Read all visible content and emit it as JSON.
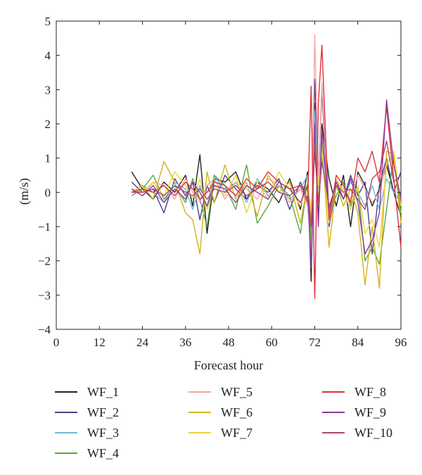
{
  "chart_data": {
    "type": "line",
    "title": "",
    "xlabel": "Forecast hour",
    "ylabel": "(m/s)",
    "xlim": [
      0,
      96
    ],
    "ylim": [
      -4,
      5
    ],
    "xticks": [
      0,
      12,
      24,
      36,
      48,
      60,
      72,
      84,
      96
    ],
    "yticks": [
      -4,
      -3,
      -2,
      -1,
      0,
      1,
      2,
      3,
      4,
      5
    ],
    "xtick_labels": [
      "0",
      "12",
      "24",
      "36",
      "48",
      "60",
      "72",
      "84",
      "96"
    ],
    "ytick_labels": [
      "−4",
      "−3",
      "−2",
      "−1",
      "0",
      "1",
      "2",
      "3",
      "4",
      "5"
    ],
    "grid": false,
    "legend_position": "below",
    "legend_columns": 3,
    "series": [
      {
        "name": "WF_1",
        "color": "#222222",
        "x": [
          21,
          24,
          27,
          30,
          33,
          36,
          38,
          40,
          42,
          44,
          47,
          50,
          53,
          56,
          59,
          62,
          65,
          68,
          70,
          71,
          72,
          73,
          74,
          76,
          78,
          80,
          82,
          84,
          86,
          88,
          90,
          92,
          94,
          96
        ],
        "y": [
          0.6,
          0.1,
          -0.2,
          0.3,
          0.0,
          0.5,
          -0.4,
          1.1,
          -1.2,
          0.4,
          0.3,
          0.6,
          -0.2,
          0.3,
          0.1,
          -0.3,
          0.4,
          -0.5,
          0.6,
          -2.6,
          2.6,
          -0.8,
          2.0,
          0.4,
          -0.4,
          0.5,
          -1.0,
          0.6,
          0.2,
          -0.4,
          0.1,
          0.8,
          0.0,
          -0.7
        ]
      },
      {
        "name": "WF_2",
        "color": "#4b3f8f",
        "x": [
          21,
          24,
          27,
          30,
          33,
          36,
          38,
          40,
          42,
          44,
          47,
          50,
          53,
          56,
          59,
          62,
          65,
          68,
          70,
          71,
          72,
          73,
          74,
          76,
          78,
          80,
          82,
          84,
          86,
          88,
          90,
          92,
          94,
          96
        ],
        "y": [
          0.3,
          0.0,
          0.1,
          -0.6,
          0.4,
          -0.1,
          0.3,
          -0.8,
          0.2,
          -0.3,
          0.5,
          0.1,
          -0.2,
          0.2,
          0.0,
          0.4,
          -0.5,
          0.3,
          -0.2,
          -1.2,
          3.3,
          0.4,
          3.0,
          -1.0,
          0.2,
          -0.2,
          0.5,
          -0.1,
          0.3,
          -1.8,
          0.2,
          1.0,
          0.0,
          0.6
        ]
      },
      {
        "name": "WF_3",
        "color": "#6bbbd8",
        "x": [
          21,
          24,
          27,
          30,
          33,
          36,
          38,
          40,
          42,
          44,
          47,
          50,
          53,
          56,
          59,
          62,
          65,
          68,
          70,
          71,
          72,
          73,
          74,
          76,
          78,
          80,
          82,
          84,
          86,
          88,
          90,
          92,
          94,
          96
        ],
        "y": [
          0.0,
          0.2,
          0.0,
          -0.3,
          0.3,
          0.1,
          -0.5,
          0.2,
          -0.4,
          0.5,
          0.0,
          0.3,
          -0.3,
          0.4,
          -0.1,
          0.2,
          -0.2,
          0.1,
          0.5,
          -1.2,
          2.4,
          0.1,
          1.5,
          -0.6,
          0.4,
          -0.2,
          0.3,
          0.0,
          -0.4,
          0.2,
          -0.5,
          0.4,
          0.0,
          -0.3
        ]
      },
      {
        "name": "WF_4",
        "color": "#5aa83a",
        "x": [
          21,
          24,
          27,
          30,
          33,
          36,
          38,
          40,
          42,
          44,
          47,
          50,
          53,
          56,
          59,
          62,
          65,
          68,
          70,
          71,
          72,
          73,
          74,
          76,
          78,
          80,
          82,
          84,
          86,
          88,
          90,
          92,
          94,
          96
        ],
        "y": [
          -0.1,
          0.1,
          0.5,
          -0.2,
          0.2,
          -0.3,
          0.4,
          -0.2,
          -1.0,
          0.5,
          0.2,
          -0.5,
          0.8,
          -0.9,
          -0.4,
          0.2,
          -0.1,
          -1.2,
          0.3,
          -1.5,
          1.4,
          -0.4,
          1.0,
          -0.6,
          -0.1,
          0.3,
          -0.4,
          0.2,
          -2.0,
          -1.6,
          -2.1,
          -0.5,
          1.1,
          -0.6
        ]
      },
      {
        "name": "WF_5",
        "color": "#f4a6a4",
        "x": [
          21,
          24,
          27,
          30,
          33,
          36,
          38,
          40,
          42,
          44,
          47,
          50,
          53,
          56,
          59,
          62,
          65,
          68,
          70,
          71,
          72,
          73,
          74,
          76,
          78,
          80,
          82,
          84,
          86,
          88,
          90,
          92,
          94,
          96
        ],
        "y": [
          0.1,
          -0.1,
          0.3,
          0.2,
          -0.2,
          0.4,
          0.0,
          -0.3,
          0.2,
          0.4,
          -0.2,
          0.3,
          0.1,
          -0.2,
          0.4,
          0.2,
          -0.3,
          0.1,
          -0.4,
          -1.8,
          4.6,
          0.3,
          3.2,
          -0.8,
          0.3,
          0.1,
          -0.2,
          0.5,
          0.1,
          -0.3,
          0.0,
          0.9,
          1.0,
          -0.2
        ]
      },
      {
        "name": "WF_6",
        "color": "#d4b21e",
        "x": [
          21,
          24,
          27,
          30,
          33,
          36,
          38,
          40,
          42,
          44,
          47,
          50,
          53,
          56,
          59,
          62,
          65,
          68,
          70,
          71,
          72,
          73,
          74,
          76,
          78,
          80,
          82,
          84,
          86,
          88,
          90,
          92,
          94,
          96
        ],
        "y": [
          0.0,
          0.2,
          -0.2,
          0.9,
          0.3,
          -0.6,
          -0.8,
          -1.8,
          0.6,
          -0.3,
          0.8,
          -0.2,
          0.3,
          -0.7,
          0.5,
          0.0,
          0.3,
          -0.9,
          0.2,
          -0.8,
          1.6,
          -0.3,
          1.4,
          -1.6,
          0.2,
          -0.4,
          0.1,
          -0.6,
          -2.7,
          -1.0,
          -2.8,
          1.2,
          1.1,
          -0.9
        ]
      },
      {
        "name": "WF_7",
        "color": "#f0d23a",
        "x": [
          21,
          24,
          27,
          30,
          33,
          36,
          38,
          40,
          42,
          44,
          47,
          50,
          53,
          56,
          59,
          62,
          65,
          68,
          70,
          71,
          72,
          73,
          74,
          76,
          78,
          80,
          82,
          84,
          86,
          88,
          90,
          92,
          94,
          96
        ],
        "y": [
          0.1,
          0.0,
          0.3,
          -0.1,
          0.6,
          0.2,
          -0.2,
          0.4,
          -0.5,
          0.2,
          -0.1,
          0.5,
          -0.6,
          0.3,
          -0.2,
          0.6,
          0.1,
          -0.4,
          0.3,
          -0.5,
          1.7,
          0.2,
          1.2,
          -0.9,
          0.4,
          0.0,
          -0.5,
          0.2,
          -1.2,
          -0.8,
          -1.6,
          0.8,
          1.2,
          -0.4
        ]
      },
      {
        "name": "WF_8",
        "color": "#e0303a",
        "x": [
          21,
          24,
          27,
          30,
          33,
          36,
          38,
          40,
          42,
          44,
          47,
          50,
          53,
          56,
          59,
          62,
          65,
          68,
          70,
          71,
          72,
          73,
          74,
          76,
          78,
          80,
          82,
          84,
          86,
          88,
          90,
          92,
          94,
          96
        ],
        "y": [
          0.0,
          0.1,
          0.0,
          0.2,
          -0.1,
          0.3,
          0.1,
          -0.2,
          0.0,
          0.3,
          0.2,
          -0.1,
          0.4,
          0.1,
          0.6,
          0.3,
          0.1,
          0.2,
          -0.3,
          3.1,
          -3.1,
          2.6,
          4.3,
          -0.8,
          0.5,
          0.2,
          -0.3,
          1.0,
          0.6,
          1.2,
          0.3,
          2.5,
          0.4,
          -1.6
        ]
      },
      {
        "name": "WF_9",
        "color": "#8e3aa0",
        "x": [
          21,
          24,
          27,
          30,
          33,
          36,
          38,
          40,
          42,
          44,
          47,
          50,
          53,
          56,
          59,
          62,
          65,
          68,
          70,
          71,
          72,
          73,
          74,
          76,
          78,
          80,
          82,
          84,
          86,
          88,
          90,
          92,
          94,
          96
        ],
        "y": [
          0.1,
          -0.1,
          0.2,
          -0.3,
          0.1,
          -0.2,
          0.3,
          0.0,
          -0.4,
          0.2,
          0.1,
          -0.3,
          0.2,
          0.0,
          -0.2,
          0.3,
          0.1,
          -0.3,
          0.2,
          -2.2,
          2.0,
          -1.0,
          1.8,
          -0.5,
          0.3,
          -0.2,
          0.4,
          -0.3,
          -1.8,
          -1.4,
          -0.6,
          2.7,
          0.8,
          -0.2
        ]
      },
      {
        "name": "WF_10",
        "color": "#b0446a",
        "x": [
          21,
          24,
          27,
          30,
          33,
          36,
          38,
          40,
          42,
          44,
          47,
          50,
          53,
          56,
          59,
          62,
          65,
          68,
          70,
          71,
          72,
          73,
          74,
          76,
          78,
          80,
          82,
          84,
          86,
          88,
          90,
          92,
          94,
          96
        ],
        "y": [
          0.0,
          0.0,
          0.1,
          -0.1,
          0.2,
          0.0,
          -0.1,
          0.1,
          -0.2,
          0.1,
          0.0,
          0.2,
          -0.1,
          0.1,
          0.3,
          0.0,
          -0.1,
          0.2,
          0.1,
          -1.0,
          1.2,
          -0.3,
          0.9,
          -0.4,
          0.2,
          0.0,
          0.1,
          -0.2,
          -0.5,
          0.4,
          0.6,
          1.5,
          0.3,
          0.5
        ]
      }
    ]
  }
}
